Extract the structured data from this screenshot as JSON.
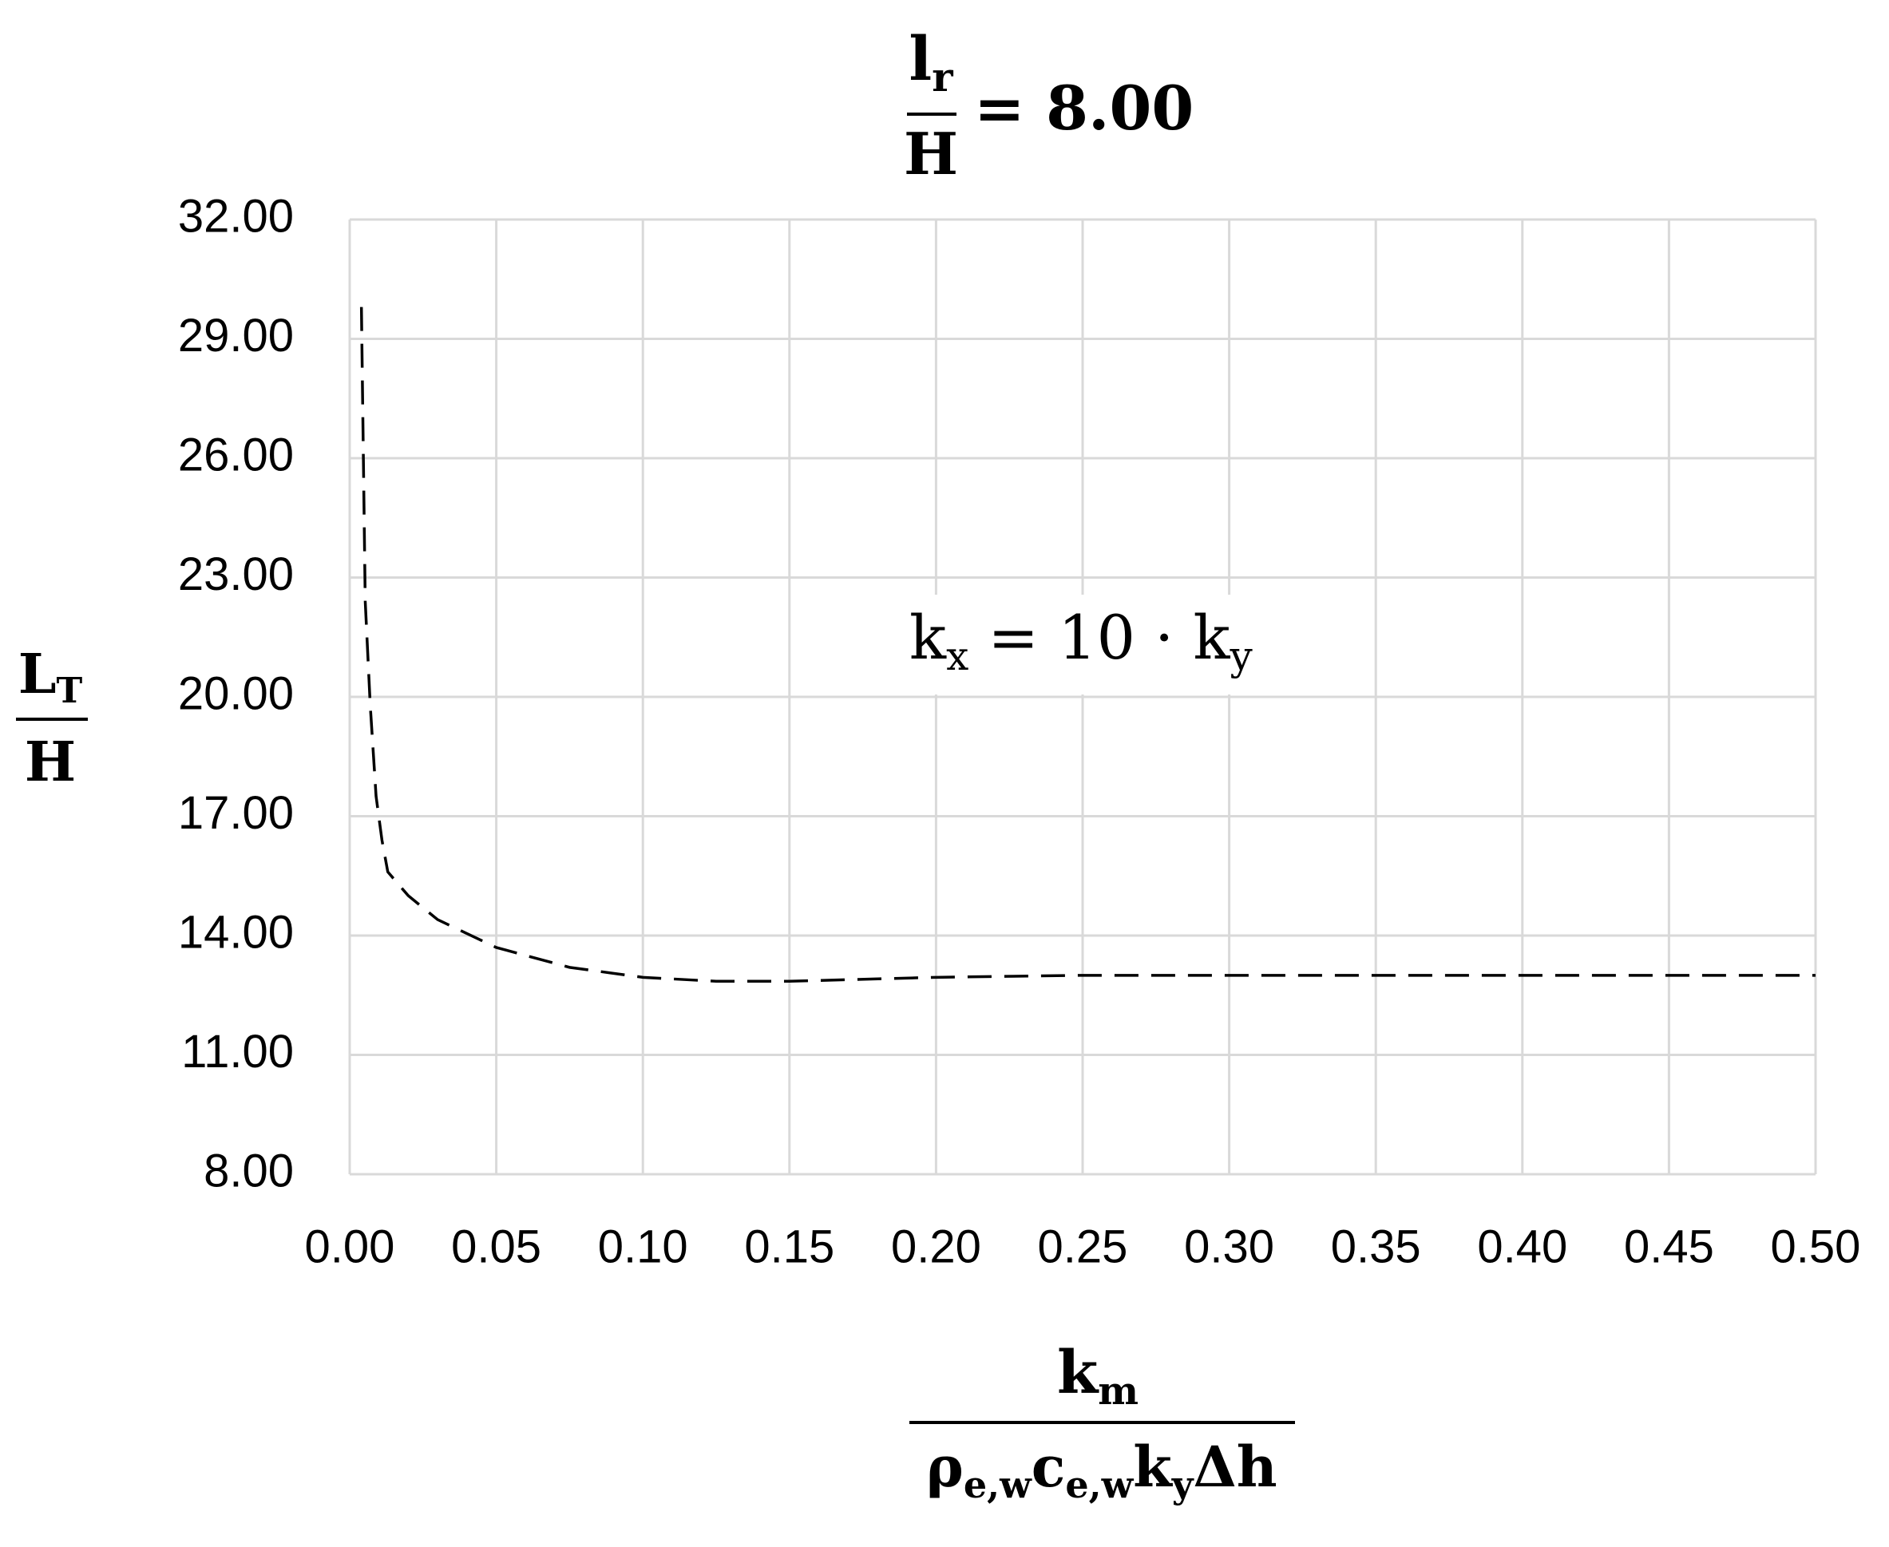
{
  "chart_data": {
    "type": "line",
    "title": {
      "numerator": "l",
      "numerator_sub": "r",
      "denominator": "H",
      "rhs": "= 8.00"
    },
    "y_label": {
      "numerator": "L",
      "numerator_sub": "T",
      "denominator": "H"
    },
    "x_label": {
      "numerator": "k",
      "numerator_sub": "m",
      "denominator": [
        "ρ",
        "e,w",
        "c",
        "e,w",
        "k",
        "y",
        "Δh"
      ]
    },
    "annotation": [
      "k",
      "x",
      " = 10 · k",
      "y"
    ],
    "x": [
      0.004,
      0.0053,
      0.007,
      0.009,
      0.011,
      0.013,
      0.02,
      0.03,
      0.05,
      0.075,
      0.1,
      0.125,
      0.15,
      0.2,
      0.25,
      0.3,
      0.4,
      0.5
    ],
    "series": [
      {
        "color": "#000000",
        "dashed": true,
        "values": [
          29.8,
          22.4,
          19.8,
          17.5,
          16.4,
          15.6,
          15.0,
          14.4,
          13.7,
          13.2,
          12.95,
          12.85,
          12.85,
          12.95,
          13.0,
          13.0,
          13.0,
          13.0
        ]
      }
    ],
    "xlim": [
      0,
      0.5
    ],
    "ylim": [
      8,
      32
    ],
    "xticks": [
      {
        "value": 0,
        "label": "0.00"
      },
      {
        "value": 0.05,
        "label": "0.05"
      },
      {
        "value": 0.1,
        "label": "0.10"
      },
      {
        "value": 0.15,
        "label": "0.15"
      },
      {
        "value": 0.2,
        "label": "0.20"
      },
      {
        "value": 0.25,
        "label": "0.25"
      },
      {
        "value": 0.3,
        "label": "0.30"
      },
      {
        "value": 0.35,
        "label": "0.35"
      },
      {
        "value": 0.4,
        "label": "0.40"
      },
      {
        "value": 0.45,
        "label": "0.45"
      },
      {
        "value": 0.5,
        "label": "0.50"
      }
    ],
    "yticks": [
      {
        "value": 8,
        "label": "8.00"
      },
      {
        "value": 11,
        "label": "11.00"
      },
      {
        "value": 14,
        "label": "14.00"
      },
      {
        "value": 17,
        "label": "17.00"
      },
      {
        "value": 20,
        "label": "20.00"
      },
      {
        "value": 23,
        "label": "23.00"
      },
      {
        "value": 26,
        "label": "26.00"
      },
      {
        "value": 29,
        "label": "29.00"
      },
      {
        "value": 32,
        "label": "32.00"
      }
    ],
    "grid": true
  }
}
